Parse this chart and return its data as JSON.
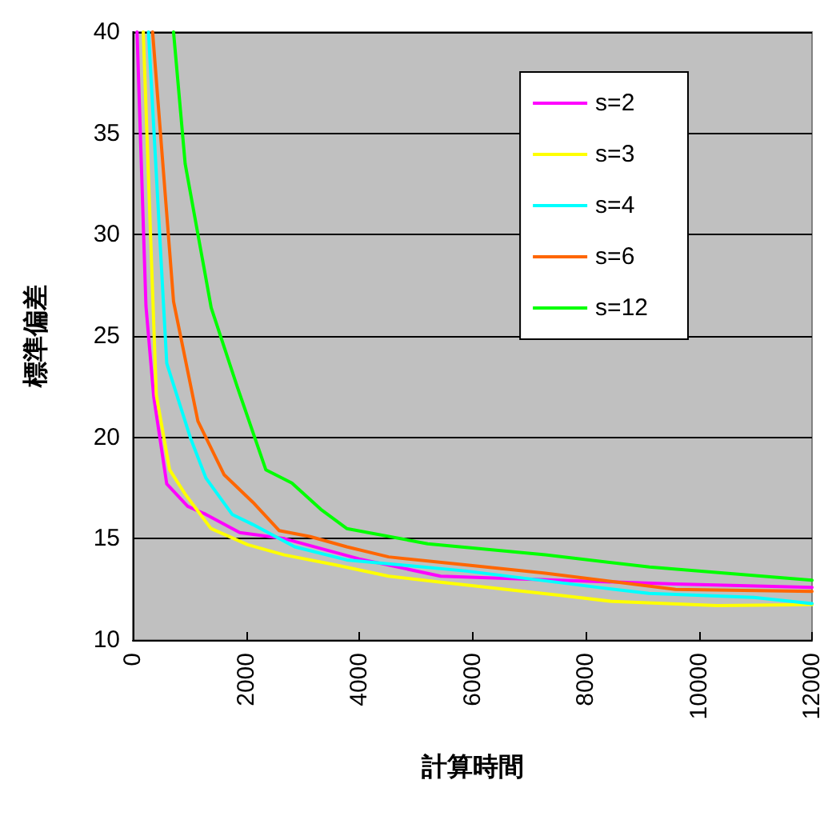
{
  "chart_data": {
    "type": "line",
    "xlabel": "計算時間",
    "ylabel": "標準偏差",
    "xlim": [
      0,
      12000
    ],
    "xticks": [
      0,
      2000,
      4000,
      6000,
      8000,
      10000,
      12000
    ],
    "ylim": [
      10,
      40
    ],
    "yticks": [
      10,
      15,
      20,
      25,
      30,
      35,
      40
    ],
    "grid": "y",
    "legend": "top right",
    "marker": "none",
    "line_style": "solid",
    "series": [
      {
        "name": "s=2",
        "color": "#ff00ff",
        "x": [
          75,
          232,
          370,
          600,
          970,
          1290,
          1890,
          2680,
          4000,
          5440,
          7000,
          9590,
          12000
        ],
        "values": [
          40,
          26.5,
          22.0,
          17.7,
          16.6,
          16.2,
          15.3,
          15.0,
          14.0,
          13.15,
          13.0,
          12.76,
          12.6
        ]
      },
      {
        "name": "s=3",
        "color": "#ffff00",
        "x": [
          185,
          415,
          650,
          925,
          1380,
          2030,
          2675,
          3590,
          4520,
          5440,
          7560,
          8480,
          10330,
          12000
        ],
        "values": [
          40,
          22.1,
          18.4,
          17.2,
          15.5,
          14.7,
          14.2,
          13.7,
          13.15,
          12.85,
          12.2,
          11.9,
          11.7,
          11.75
        ]
      },
      {
        "name": "s=4",
        "color": "#00ffff",
        "x": [
          277,
          600,
          1015,
          1290,
          1755,
          2120,
          2860,
          3780,
          5900,
          8210,
          9120,
          10970,
          12000
        ],
        "values": [
          40,
          23.65,
          20.0,
          18.0,
          16.2,
          15.7,
          14.6,
          13.95,
          13.4,
          12.6,
          12.3,
          12.1,
          11.8
        ]
      },
      {
        "name": "s=6",
        "color": "#ff6600",
        "x": [
          350,
          720,
          1150,
          1615,
          2120,
          2585,
          3135,
          3780,
          4520,
          5900,
          7290,
          9590,
          12000
        ],
        "values": [
          40,
          26.7,
          20.8,
          18.15,
          16.8,
          15.4,
          15.1,
          14.6,
          14.1,
          13.7,
          13.3,
          12.5,
          12.4
        ]
      },
      {
        "name": "s=12",
        "color": "#00ff00",
        "x": [
          720,
          925,
          1385,
          1845,
          2350,
          2810,
          3320,
          3780,
          5210,
          7290,
          9130,
          12000
        ],
        "values": [
          40,
          33.5,
          26.4,
          22.5,
          18.4,
          17.75,
          16.45,
          15.5,
          14.75,
          14.2,
          13.6,
          12.95
        ]
      }
    ]
  }
}
